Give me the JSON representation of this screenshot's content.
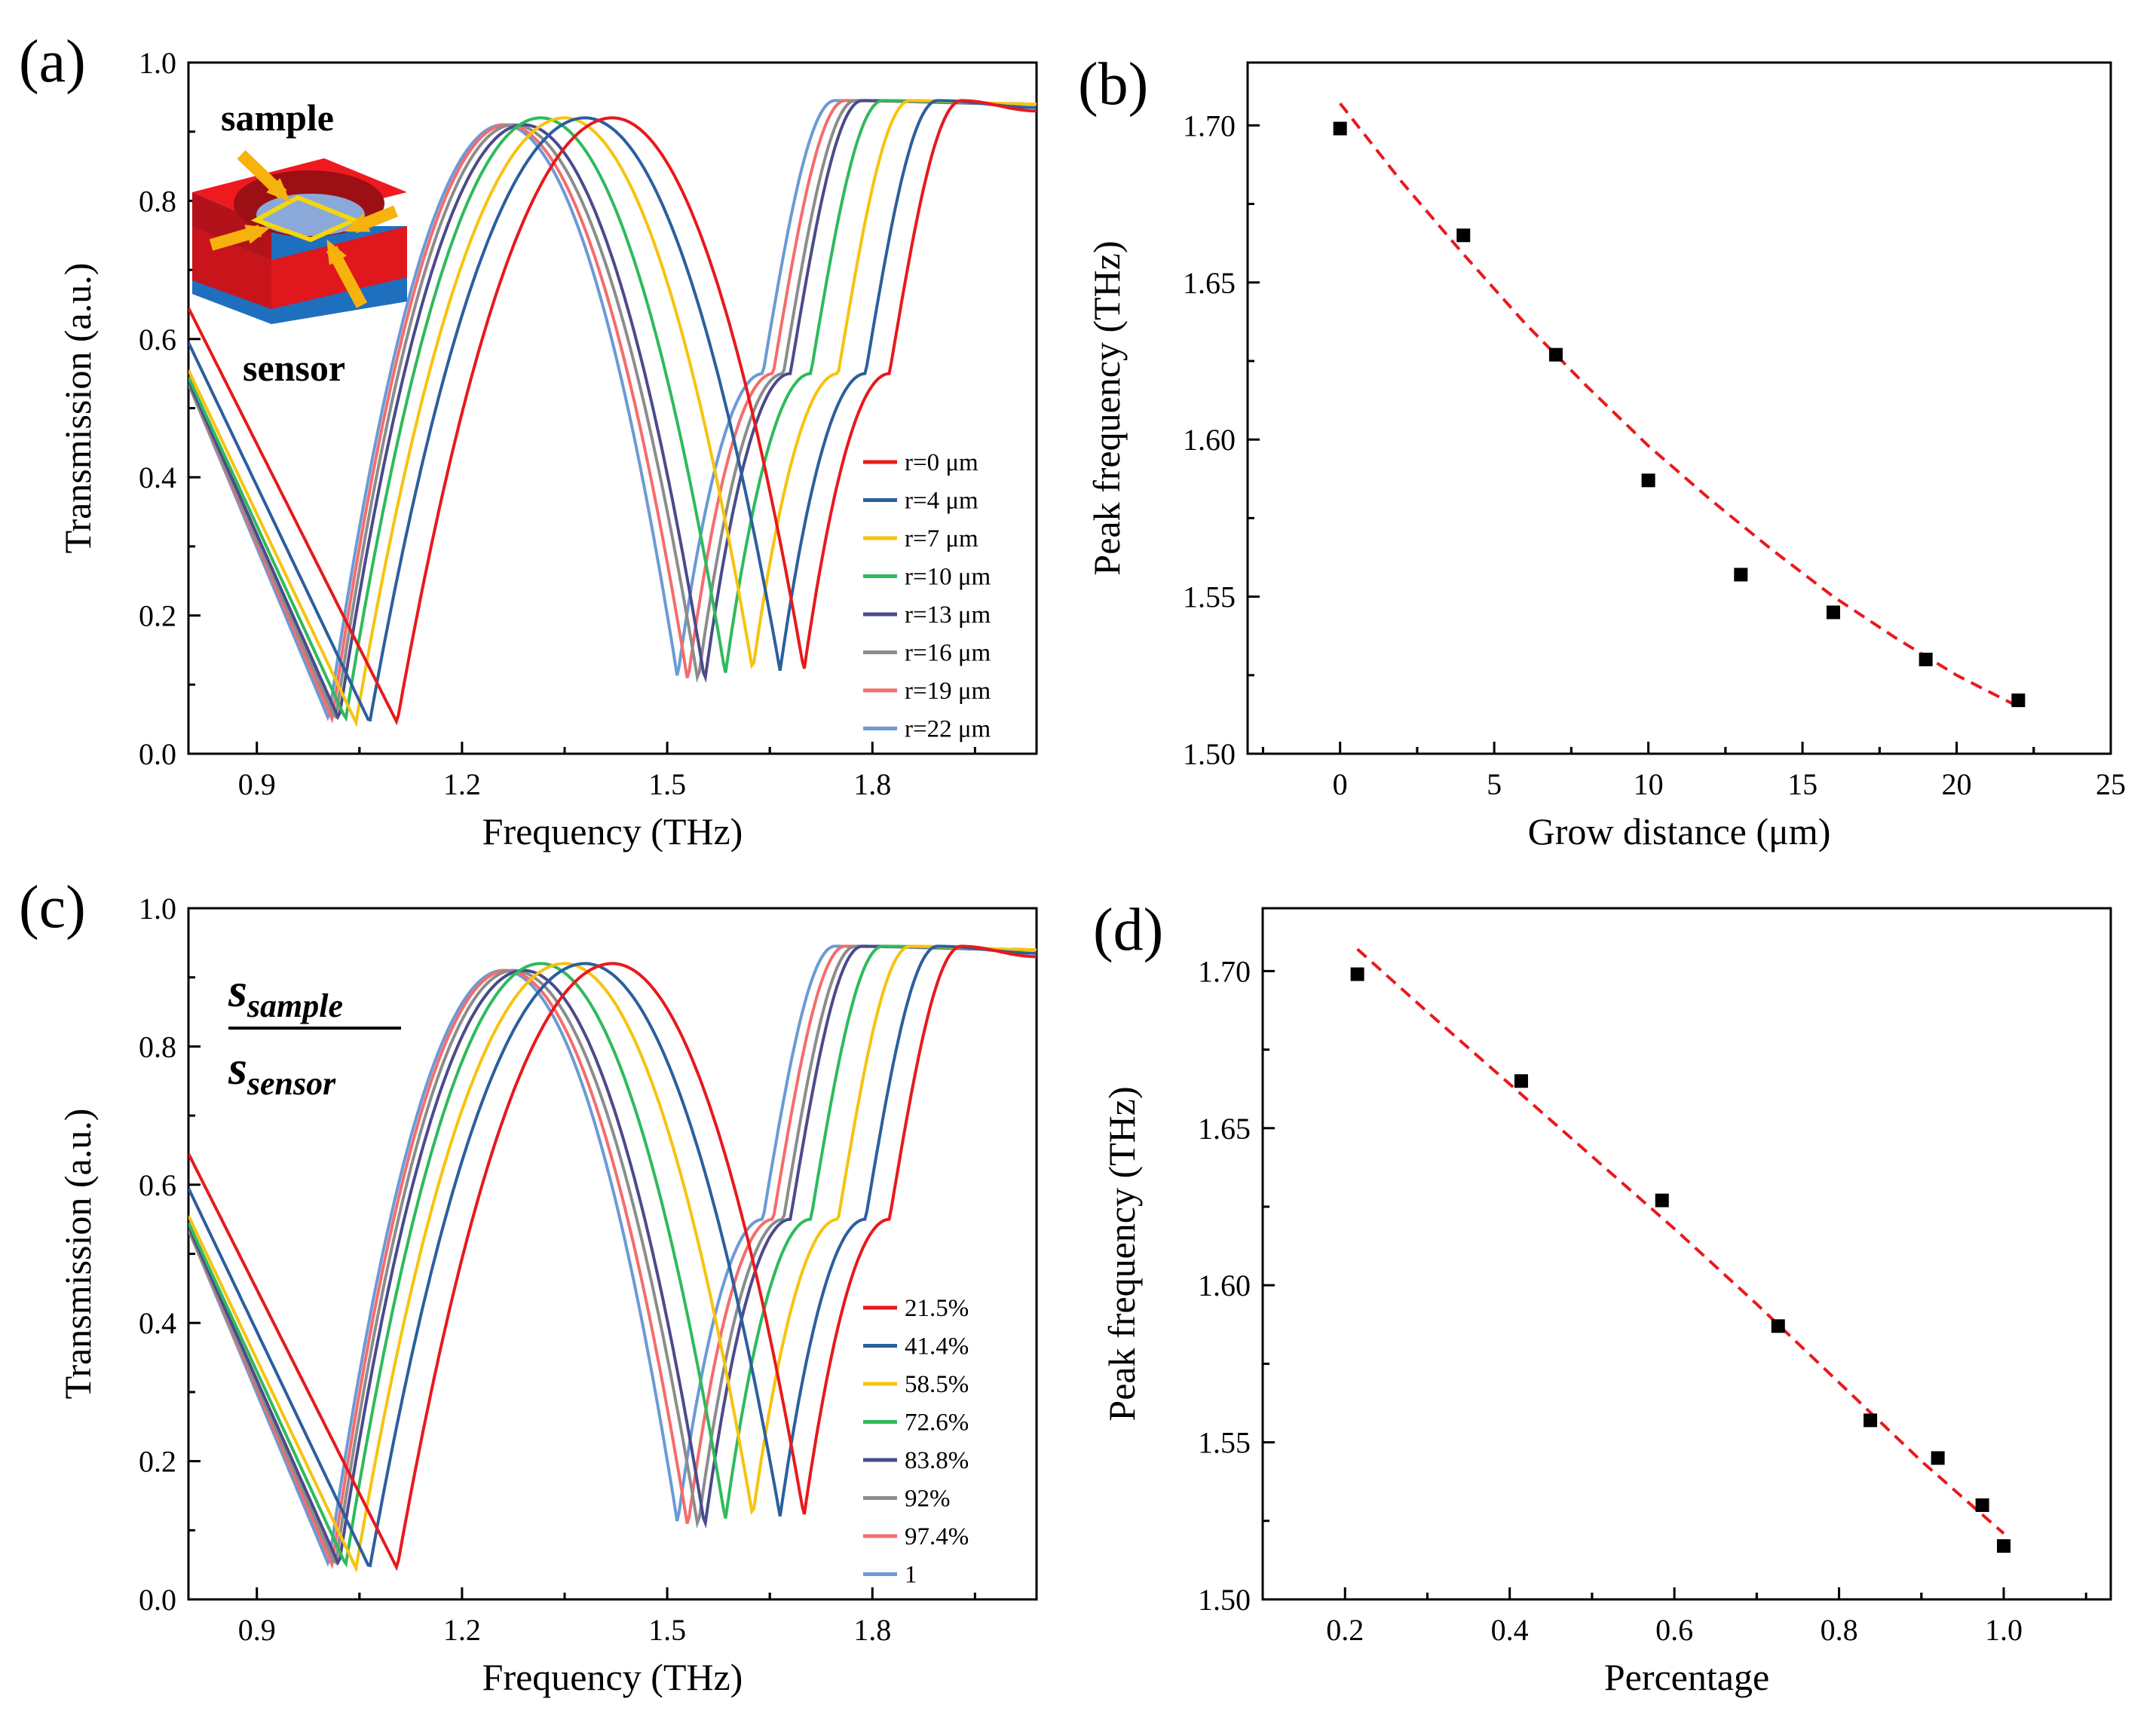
{
  "colors": [
    "#e8191c",
    "#2b5f9e",
    "#f7c30f",
    "#2fba5b",
    "#4b4a8c",
    "#8c8c8c",
    "#f56c6c",
    "#6b9ad6"
  ],
  "panels": [
    {
      "id": "a",
      "panel_label": "(a)",
      "inset_labels": [
        "sample",
        "sensor"
      ],
      "legend_labels": [
        "r=0 μm",
        "r=4 μm",
        "r=7 μm",
        "r=10 μm",
        "r=13 μm",
        "r=16 μm",
        "r=19 μm",
        "r=22 μm"
      ]
    },
    {
      "id": "b",
      "panel_label": "(b)"
    },
    {
      "id": "c",
      "panel_label": "(c)",
      "fraction": {
        "numerator": "s",
        "numerator_sub": "sample",
        "denominator": "s",
        "denominator_sub": "sensor"
      },
      "legend_labels": [
        "21.5%",
        "41.4%",
        "58.5%",
        "72.6%",
        "83.8%",
        "92%",
        "97.4%",
        "1"
      ]
    },
    {
      "id": "d",
      "panel_label": "(d)"
    }
  ],
  "chart_data": [
    {
      "type": "line",
      "panel": "a",
      "xlabel": "Frequency (THz)",
      "ylabel": "Transmission (a.u.)",
      "xlim": [
        0.8,
        2.04
      ],
      "ylim": [
        0.0,
        1.0
      ],
      "xticks": [
        "0.9",
        "1.2",
        "1.5",
        "1.8"
      ],
      "yticks": [
        "0.0",
        "0.2",
        "0.4",
        "0.6",
        "0.8",
        "1.0"
      ],
      "legend_position": "center-right",
      "series": [
        {
          "name": "r=0 μm",
          "dip1": 1.105,
          "dip1_value": 0.045,
          "peak": 1.42,
          "peak_value": 0.92,
          "dip2": 1.7,
          "dip2_value": 0.12,
          "start_value": 0.645,
          "end_value": 0.93
        },
        {
          "name": "r=4 μm",
          "dip1": 1.065,
          "dip1_value": 0.045,
          "peak": 1.38,
          "peak_value": 0.92,
          "dip2": 1.665,
          "dip2_value": 0.12,
          "start_value": 0.595,
          "end_value": 0.935
        },
        {
          "name": "r=7 μm",
          "dip1": 1.045,
          "dip1_value": 0.045,
          "peak": 1.35,
          "peak_value": 0.92,
          "dip2": 1.625,
          "dip2_value": 0.12,
          "start_value": 0.555,
          "end_value": 0.94
        },
        {
          "name": "r=10 μm",
          "dip1": 1.03,
          "dip1_value": 0.05,
          "peak": 1.315,
          "peak_value": 0.92,
          "dip2": 1.585,
          "dip2_value": 0.115,
          "start_value": 0.545,
          "end_value": 0.94
        },
        {
          "name": "r=13 μm",
          "dip1": 1.02,
          "dip1_value": 0.05,
          "peak": 1.29,
          "peak_value": 0.91,
          "dip2": 1.555,
          "dip2_value": 0.105,
          "start_value": 0.54,
          "end_value": 0.94
        },
        {
          "name": "r=16 μm",
          "dip1": 1.015,
          "dip1_value": 0.05,
          "peak": 1.275,
          "peak_value": 0.91,
          "dip2": 1.545,
          "dip2_value": 0.105,
          "start_value": 0.535,
          "end_value": 0.94
        },
        {
          "name": "r=19 μm",
          "dip1": 1.01,
          "dip1_value": 0.05,
          "peak": 1.265,
          "peak_value": 0.91,
          "dip2": 1.53,
          "dip2_value": 0.105,
          "start_value": 0.535,
          "end_value": 0.94
        },
        {
          "name": "r=22 μm",
          "dip1": 1.005,
          "dip1_value": 0.05,
          "peak": 1.26,
          "peak_value": 0.91,
          "dip2": 1.515,
          "dip2_value": 0.11,
          "start_value": 0.535,
          "end_value": 0.94
        }
      ]
    },
    {
      "type": "scatter",
      "panel": "b",
      "xlabel": "Grow distance (μm)",
      "ylabel": "Peak frequency (THz)",
      "xlim": [
        -3,
        25
      ],
      "ylim": [
        1.5,
        1.72
      ],
      "xticks": [
        "0",
        "5",
        "10",
        "15",
        "20",
        "25"
      ],
      "yticks": [
        "1.50",
        "1.55",
        "1.60",
        "1.65",
        "1.70"
      ],
      "x": [
        0,
        4,
        7,
        10,
        13,
        16,
        19,
        22
      ],
      "y": [
        1.699,
        1.665,
        1.627,
        1.587,
        1.557,
        1.545,
        1.53,
        1.517
      ],
      "fit": {
        "x": [
          0,
          2,
          4,
          6,
          8,
          10,
          12,
          14,
          16,
          18,
          20,
          22
        ],
        "y": [
          1.707,
          1.682,
          1.659,
          1.637,
          1.617,
          1.598,
          1.581,
          1.565,
          1.55,
          1.537,
          1.525,
          1.515
        ]
      }
    },
    {
      "type": "line",
      "panel": "c",
      "xlabel": "Frequency (THz)",
      "ylabel": "Transmission (a.u.)",
      "xlim": [
        0.8,
        2.04
      ],
      "ylim": [
        0.0,
        1.0
      ],
      "xticks": [
        "0.9",
        "1.2",
        "1.5",
        "1.8"
      ],
      "yticks": [
        "0.0",
        "0.2",
        "0.4",
        "0.6",
        "0.8",
        "1.0"
      ],
      "legend_position": "center-right",
      "series": [
        {
          "name": "21.5%",
          "dip1": 1.105,
          "dip1_value": 0.045,
          "peak": 1.42,
          "peak_value": 0.92,
          "dip2": 1.7,
          "dip2_value": 0.12,
          "start_value": 0.645,
          "end_value": 0.93
        },
        {
          "name": "41.4%",
          "dip1": 1.065,
          "dip1_value": 0.045,
          "peak": 1.38,
          "peak_value": 0.92,
          "dip2": 1.665,
          "dip2_value": 0.12,
          "start_value": 0.595,
          "end_value": 0.935
        },
        {
          "name": "58.5%",
          "dip1": 1.045,
          "dip1_value": 0.045,
          "peak": 1.35,
          "peak_value": 0.92,
          "dip2": 1.625,
          "dip2_value": 0.12,
          "start_value": 0.555,
          "end_value": 0.94
        },
        {
          "name": "72.6%",
          "dip1": 1.03,
          "dip1_value": 0.05,
          "peak": 1.315,
          "peak_value": 0.92,
          "dip2": 1.585,
          "dip2_value": 0.115,
          "start_value": 0.545,
          "end_value": 0.94
        },
        {
          "name": "83.8%",
          "dip1": 1.02,
          "dip1_value": 0.05,
          "peak": 1.29,
          "peak_value": 0.91,
          "dip2": 1.555,
          "dip2_value": 0.105,
          "start_value": 0.54,
          "end_value": 0.94
        },
        {
          "name": "92%",
          "dip1": 1.015,
          "dip1_value": 0.05,
          "peak": 1.275,
          "peak_value": 0.91,
          "dip2": 1.545,
          "dip2_value": 0.105,
          "start_value": 0.535,
          "end_value": 0.94
        },
        {
          "name": "97.4%",
          "dip1": 1.01,
          "dip1_value": 0.05,
          "peak": 1.265,
          "peak_value": 0.91,
          "dip2": 1.53,
          "dip2_value": 0.105,
          "start_value": 0.535,
          "end_value": 0.94
        },
        {
          "name": "1",
          "dip1": 1.005,
          "dip1_value": 0.05,
          "peak": 1.26,
          "peak_value": 0.91,
          "dip2": 1.515,
          "dip2_value": 0.11,
          "start_value": 0.535,
          "end_value": 0.94
        }
      ]
    },
    {
      "type": "scatter",
      "panel": "d",
      "xlabel": "Percentage",
      "ylabel": "Peak frequency (THz)",
      "xlim": [
        0.1,
        1.13
      ],
      "ylim": [
        1.5,
        1.72
      ],
      "xticks": [
        "0.2",
        "0.4",
        "0.6",
        "0.8",
        "1.0"
      ],
      "yticks": [
        "1.50",
        "1.55",
        "1.60",
        "1.65",
        "1.70"
      ],
      "x": [
        0.215,
        0.414,
        0.585,
        0.726,
        0.838,
        0.92,
        0.974,
        1.0
      ],
      "y": [
        1.699,
        1.665,
        1.627,
        1.587,
        1.557,
        1.545,
        1.53,
        1.517
      ],
      "fit": {
        "x": [
          0.215,
          0.3,
          0.4,
          0.5,
          0.6,
          0.7,
          0.8,
          0.9,
          1.0
        ],
        "y": [
          1.707,
          1.687,
          1.664,
          1.641,
          1.618,
          1.594,
          1.569,
          1.544,
          1.521
        ]
      }
    }
  ]
}
